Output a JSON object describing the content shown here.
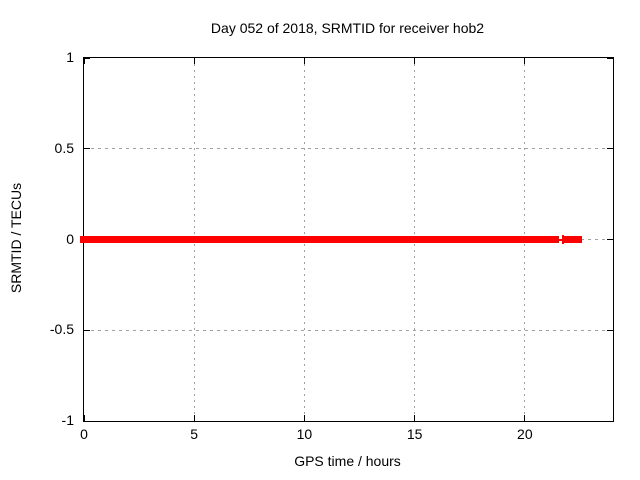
{
  "title": "Day 052 of 2018, SRMTID for receiver hob2",
  "chart_data": {
    "type": "scatter",
    "title": "Day 052 of 2018, SRMTID for receiver hob2",
    "xlabel": "GPS time / hours",
    "ylabel": "SRMTID / TECUs",
    "xlim": [
      0,
      24
    ],
    "ylim": [
      -1,
      1
    ],
    "xticks": [
      0,
      5,
      10,
      15,
      20
    ],
    "xtick_labels": [
      "0",
      "5",
      "10",
      "15",
      "20"
    ],
    "yticks": [
      1,
      0.5,
      0,
      -0.5,
      -1
    ],
    "ytick_labels": [
      "1",
      "0.5",
      "0",
      "-0.5",
      "-1"
    ],
    "grid": true,
    "legend": "none",
    "marker": "+",
    "series": [
      {
        "name": "SRMTID",
        "color": "#ff0000",
        "value_tecus": 0,
        "segments": [
          {
            "type": "bar",
            "start_h": 0,
            "end_h": 21.37,
            "y": 0
          },
          {
            "type": "point",
            "at_h": 21.71,
            "y": 0
          },
          {
            "type": "bar",
            "start_h": 21.97,
            "end_h": 22.42,
            "y": 0
          }
        ]
      }
    ]
  },
  "colors": {
    "data": "#ff0000",
    "grid": "#a0a0a0",
    "frame": "#000000",
    "background": "#ffffff",
    "text": "#000000"
  }
}
